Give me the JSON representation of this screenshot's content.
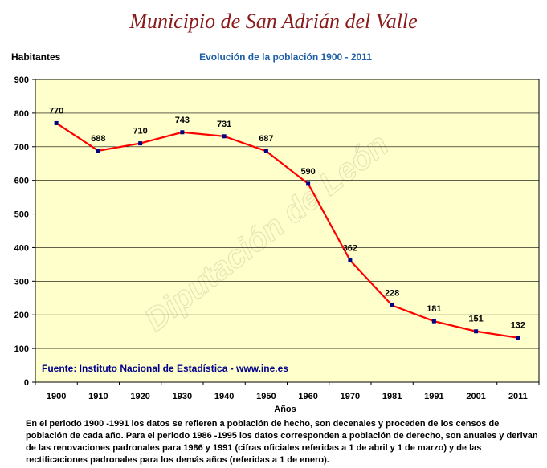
{
  "title": "Municipio de San Adrián del Valle",
  "subtitle": "Evolución de la población 1900 - 2011",
  "source": "Fuente: Instituto Nacional de Estadística - www.ine.es",
  "watermark": "Diputación de León",
  "footnote": "En el periodo 1900 -1991 los datos se refieren a población de hecho, son decenales y proceden de los censos de población de cada año. Para el periodo 1986 -1995 los datos corresponden a población de derecho, son anuales y derivan de las renovaciones padronales para 1986 y 1991 (cifras oficiales referidas a 1 de abril y 1 de marzo) y de las rectificaciones padronales para los demás años (referidas a 1 de enero).",
  "colors": {
    "line": "#FF0000",
    "marker": "#000080",
    "plot_bg": "#FFFFCC",
    "title": "#8B1A1A",
    "subtitle": "#1F5FA8",
    "source": "#00008B"
  },
  "chart_data": {
    "type": "line",
    "title": "Evolución de la población 1900 - 2011",
    "xlabel": "Años",
    "ylabel": "Habitantes",
    "categories": [
      "1900",
      "1910",
      "1920",
      "1930",
      "1940",
      "1950",
      "1960",
      "1970",
      "1981",
      "1991",
      "2001",
      "2011"
    ],
    "values": [
      770,
      688,
      710,
      743,
      731,
      687,
      590,
      362,
      228,
      181,
      151,
      132
    ],
    "ylim": [
      0,
      900
    ],
    "yticks": [
      0,
      100,
      200,
      300,
      400,
      500,
      600,
      700,
      800,
      900
    ],
    "grid": true,
    "legend": "none"
  }
}
